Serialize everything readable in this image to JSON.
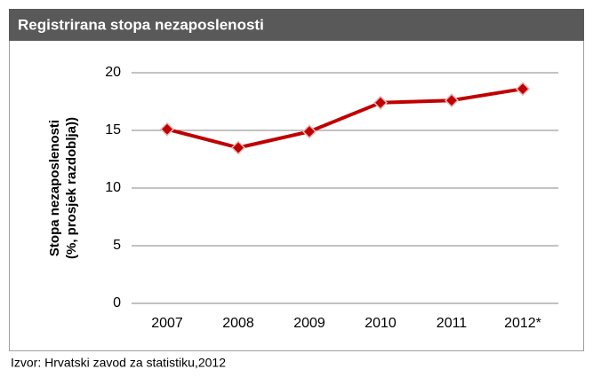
{
  "chart_data": {
    "type": "line",
    "title": "Registrirana stopa nezaposlenosti",
    "ylabel": [
      "Stopa nezaposlenosti",
      "(%, prosjek razdoblja))"
    ],
    "source": "Izvor: Hrvatski zavod za statistiku,2012",
    "categories": [
      "2007",
      "2008",
      "2009",
      "2010",
      "2011",
      "2012*"
    ],
    "series": [
      {
        "name": "Stopa nezaposlenosti",
        "color": "#c00000",
        "values": [
          15.1,
          13.5,
          14.9,
          17.4,
          17.6,
          18.6
        ]
      }
    ],
    "ylim": [
      0,
      20
    ],
    "yticks": [
      0,
      5,
      10,
      15,
      20
    ],
    "grid": true
  }
}
